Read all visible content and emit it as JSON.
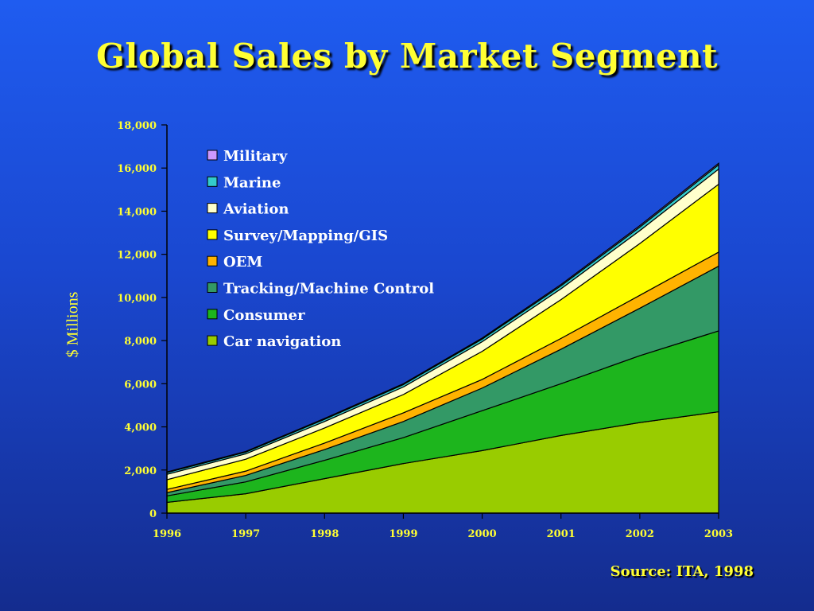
{
  "title": "Global Sales by Market Segment",
  "source": "Source: ITA, 1998",
  "colors": {
    "title": "#ffff33",
    "background_top": "#1f5cf0",
    "background_bottom": "#142c8e"
  },
  "chart_data": {
    "type": "area",
    "stacked": true,
    "title": "Global Sales by Market Segment",
    "xlabel": "",
    "ylabel": "$ Millions",
    "x": [
      "1996",
      "1997",
      "1998",
      "1999",
      "2000",
      "2001",
      "2002",
      "2003"
    ],
    "ylim": [
      0,
      18000
    ],
    "yticks": [
      "0",
      "2,000",
      "4,000",
      "6,000",
      "8,000",
      "10,000",
      "12,000",
      "14,000",
      "16,000",
      "18,000"
    ],
    "legend_position": "top-left",
    "series": [
      {
        "name": "Car navigation",
        "color": "#99cc00",
        "values": [
          500,
          900,
          1600,
          2300,
          2900,
          3600,
          4200,
          4700
        ]
      },
      {
        "name": "Consumer",
        "color": "#1db51d",
        "values": [
          300,
          550,
          850,
          1200,
          1850,
          2400,
          3100,
          3750
        ]
      },
      {
        "name": "Tracking/Machine Control",
        "color": "#339966",
        "values": [
          150,
          300,
          500,
          750,
          1050,
          1600,
          2200,
          3000
        ]
      },
      {
        "name": "OEM",
        "color": "#ffb300",
        "values": [
          150,
          200,
          300,
          400,
          400,
          500,
          600,
          650
        ]
      },
      {
        "name": "Survey/Mapping/GIS",
        "color": "#ffff00",
        "values": [
          450,
          550,
          700,
          850,
          1300,
          1800,
          2400,
          3150
        ]
      },
      {
        "name": "Aviation",
        "color": "#ffffcc",
        "values": [
          250,
          250,
          300,
          350,
          450,
          500,
          600,
          700
        ]
      },
      {
        "name": "Marine",
        "color": "#33cccc",
        "values": [
          80,
          80,
          100,
          110,
          120,
          140,
          160,
          200
        ]
      },
      {
        "name": "Military",
        "color": "#cc99ff",
        "values": [
          30,
          30,
          40,
          40,
          50,
          60,
          70,
          70
        ]
      }
    ],
    "legend_order": [
      "Military",
      "Marine",
      "Aviation",
      "Survey/Mapping/GIS",
      "OEM",
      "Tracking/Machine Control",
      "Consumer",
      "Car navigation"
    ]
  }
}
